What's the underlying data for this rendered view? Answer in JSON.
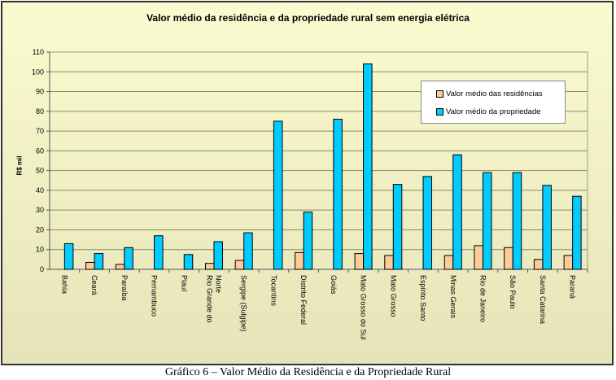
{
  "chart_data": {
    "type": "bar",
    "title": "Valor médio da residência e da propriedade rural sem energia elétrica",
    "xlabel": "",
    "ylabel": "R$ mil",
    "ylim": [
      0,
      110
    ],
    "yticks": [
      0,
      10,
      20,
      30,
      40,
      50,
      60,
      70,
      80,
      90,
      100,
      110
    ],
    "grid": true,
    "legend_position": "top-right",
    "categories": [
      "Bahia",
      "Ceará",
      "Paraíba",
      "Pernambuco",
      "Piauí",
      "Rio Grande do Norte",
      "Sergipe (Sulgipe)",
      "Tocantins",
      "Distrito Federal",
      "Goiás",
      "Mato Grosso do Sul",
      "Mato Grosso",
      "Espírito Santo",
      "Minas Gerais",
      "Rio de Janeiro",
      "São Paulo",
      "Santa Catarina",
      "Paraná"
    ],
    "series": [
      {
        "name": "Valor médio das residências",
        "color": "#ffcc99",
        "values": [
          0,
          3.5,
          2.5,
          0,
          0,
          3,
          4.5,
          0,
          8.5,
          0,
          8,
          7,
          0,
          7,
          12,
          11,
          5,
          7
        ]
      },
      {
        "name": "Valor médio da propriedade",
        "color": "#00ccff",
        "values": [
          13,
          8,
          11,
          17,
          7.5,
          14,
          18.5,
          75,
          29,
          76,
          104,
          43,
          47,
          58,
          49,
          49,
          42.5,
          37
        ]
      }
    ]
  },
  "caption": "Gráfico 6 – Valor Médio da Residência e da Propriedade Rural"
}
